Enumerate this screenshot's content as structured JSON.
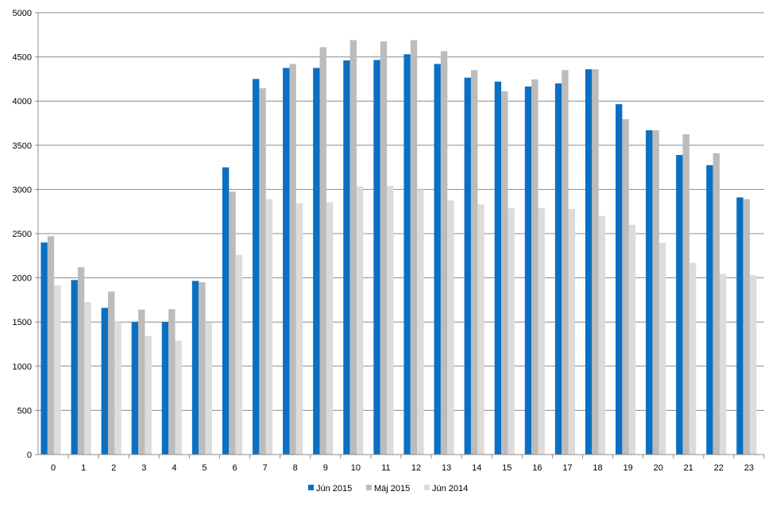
{
  "chart_data": {
    "type": "bar",
    "categories": [
      "0",
      "1",
      "2",
      "3",
      "4",
      "5",
      "6",
      "7",
      "8",
      "9",
      "10",
      "11",
      "12",
      "13",
      "14",
      "15",
      "16",
      "17",
      "18",
      "19",
      "20",
      "21",
      "22",
      "23"
    ],
    "series": [
      {
        "name": "Jún 2015",
        "color": "#0b6fc2",
        "values": [
          2400,
          1975,
          1660,
          1500,
          1500,
          1965,
          3250,
          4250,
          4375,
          4375,
          4460,
          4465,
          4530,
          4420,
          4265,
          4220,
          4165,
          4200,
          4360,
          3965,
          3670,
          3390,
          3275,
          2910
        ]
      },
      {
        "name": "Máj 2015",
        "color": "#bcbcbc",
        "values": [
          2470,
          2120,
          1845,
          1640,
          1645,
          1950,
          2975,
          4145,
          4420,
          4610,
          4690,
          4675,
          4690,
          4565,
          4350,
          4110,
          4245,
          4350,
          4360,
          3795,
          3670,
          3625,
          3410,
          2890
        ]
      },
      {
        "name": "Jún 2014",
        "color": "#dcdcdc",
        "values": [
          1915,
          1725,
          1500,
          1340,
          1290,
          1490,
          2260,
          2890,
          2845,
          2855,
          3035,
          3040,
          3000,
          2875,
          2830,
          2790,
          2790,
          2780,
          2700,
          2600,
          2395,
          2170,
          2045,
          2030
        ]
      }
    ],
    "ylim": [
      0,
      5000
    ],
    "yticks": [
      "0",
      "500",
      "1000",
      "1500",
      "2000",
      "2500",
      "3000",
      "3500",
      "4000",
      "4500",
      "5000"
    ],
    "grid": true,
    "legend_position": "bottom"
  }
}
